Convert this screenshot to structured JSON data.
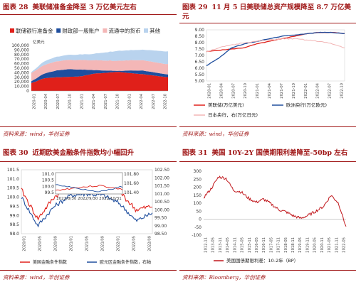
{
  "panels": [
    {
      "caption_num": "图表 28",
      "caption_text": "美联储准备金降至 3 万亿美元左右",
      "source": "资料来源：wind，华创证券"
    },
    {
      "caption_num": "图表 29",
      "caption_text": "11 月 5 日美联储总资产规模降至 8.7 万亿美元",
      "source": "资料来源：wind，华创证券"
    },
    {
      "caption_num": "图表 30",
      "caption_text": "近期欧美金融条件指数均小幅回升",
      "source": "资料来源：wind，华创证券"
    },
    {
      "caption_num": "图表 31",
      "caption_text": "美国 10Y-2Y 国债期限利差降至-50bp 左右",
      "source": "资料来源：Bloomberg，华创证券"
    }
  ],
  "colors": {
    "caption": "#a01818",
    "red": "#e0201a",
    "blue": "#1f4e9e",
    "pink": "#f4b7b7",
    "lightblue": "#b9d3ee",
    "darkred": "#c0161b"
  },
  "chart_data": [
    {
      "type": "area",
      "stacked": true,
      "ylabel": "亿美元",
      "ylim": [
        0,
        100000
      ],
      "yticks": [
        "100,000",
        "90,000",
        "80,000",
        "70,000",
        "60,000",
        "50,000",
        "40,000",
        "30,000",
        "20,000",
        "10,000",
        "0"
      ],
      "x": [
        "2020-01",
        "2020-04",
        "2020-07",
        "2020-10",
        "2021-01",
        "2021-04",
        "2021-07",
        "2021-10",
        "2022-01",
        "2022-04",
        "2022-07",
        "2022-10"
      ],
      "series": [
        {
          "name": "联储银行准备金",
          "color": "#e0201a",
          "values": [
            17000,
            28000,
            30000,
            31000,
            32000,
            38000,
            40000,
            42000,
            39000,
            37000,
            33000,
            30000
          ]
        },
        {
          "name": "财政部一般账户",
          "color": "#1f4e9e",
          "values": [
            4000,
            10000,
            15000,
            17000,
            15000,
            8000,
            5000,
            2000,
            6000,
            8000,
            7000,
            6000
          ]
        },
        {
          "name": "流通中的货币",
          "color": "#f4b7b7",
          "values": [
            18000,
            19000,
            20000,
            20500,
            21000,
            21500,
            22000,
            22000,
            22500,
            22500,
            22500,
            22500
          ]
        },
        {
          "name": "其他",
          "color": "#b9d3ee",
          "values": [
            2000,
            8000,
            10000,
            11000,
            12000,
            14000,
            18000,
            22000,
            22000,
            23000,
            26000,
            28000
          ]
        }
      ]
    },
    {
      "type": "line",
      "ylim": [
        5.0,
        9.0
      ],
      "yticks": [
        "9.00",
        "8.50",
        "8.00",
        "7.50",
        "7.00",
        "6.50",
        "6.00",
        "5.50",
        "5.00"
      ],
      "x": [
        "2020-01",
        "2020-04",
        "2020-07",
        "2020-10",
        "2021-01",
        "2021-04",
        "2021-07",
        "2021-10",
        "2022-01",
        "2022-04",
        "2022-07",
        "2022-10"
      ],
      "series": [
        {
          "name": "美联储(万亿美元)",
          "color": "#e0201a",
          "values": [
            7.3,
            7.4,
            7.5,
            7.6,
            7.9,
            8.1,
            8.3,
            8.5,
            8.7,
            8.8,
            8.8,
            8.7
          ]
        },
        {
          "name": "欧洲央行(万亿欧元)",
          "color": "#1f4e9e",
          "values": [
            6.2,
            6.8,
            7.6,
            7.9,
            8.1,
            8.3,
            8.5,
            8.6,
            8.7,
            8.8,
            8.8,
            8.7
          ]
        },
        {
          "name": "日本央行，右(万亿日元)",
          "color": "#f2b5b5",
          "values": [
            7.3,
            7.6,
            7.8,
            8.0,
            8.1,
            8.2,
            8.3,
            8.3,
            8.2,
            8.1,
            7.9,
            7.6
          ]
        }
      ]
    },
    {
      "type": "line",
      "ylim_left": [
        98.0,
        101.5
      ],
      "ylim_right": [
        98.5,
        102.5
      ],
      "yticks_left": [
        "101.5",
        "101.0",
        "100.5",
        "100.0",
        "99.5",
        "99.0",
        "98.5",
        "98.0"
      ],
      "yticks_right": [
        "102.50",
        "102.00",
        "101.50",
        "101.00",
        "100.50",
        "100.00",
        "99.50",
        "99.00",
        "98.50"
      ],
      "x": [
        "2020/01",
        "2020/05",
        "2020/09",
        "2021/01",
        "2021/05",
        "2021/09",
        "2022/01",
        "2022/05",
        "2022/09"
      ],
      "series": [
        {
          "name": "美国金融条件指数",
          "color": "#e0201a",
          "values": [
            100.4,
            98.8,
            100.0,
            100.6,
            100.8,
            100.7,
            100.3,
            99.3,
            99.5
          ]
        },
        {
          "name": "欧元区金融条件指数，右轴",
          "color": "#1f4e9e",
          "values": [
            100.8,
            99.0,
            100.2,
            100.9,
            101.0,
            100.9,
            100.4,
            99.3,
            99.8
          ]
        }
      ],
      "inset": {
        "x": [
          "2022/8/30",
          "2022/9/30",
          "2022/10/31"
        ],
        "yticks_left": [
          "101.0",
          "100.5",
          "100.0",
          "99.5"
        ],
        "yticks_right": [
          "101.80",
          "101.60",
          "101.40"
        ]
      }
    },
    {
      "type": "line",
      "ylim": [
        -100,
        300
      ],
      "yticks": [
        "300",
        "250",
        "200",
        "150",
        "100",
        "50",
        "0",
        "-50",
        "-100"
      ],
      "x": [
        "2012-11",
        "2013-05",
        "2013-11",
        "2014-05",
        "2014-11",
        "2015-05",
        "2015-11",
        "2016-05",
        "2016-11",
        "2017-05",
        "2017-11",
        "2018-05",
        "2018-11",
        "2019-05",
        "2019-11",
        "2020-05",
        "2020-11",
        "2021-05",
        "2021-11",
        "2022-05"
      ],
      "series": [
        {
          "name": "美国国债期限利差：10-2年（BP）",
          "color": "#c0161b",
          "values": [
            135,
            190,
            265,
            255,
            180,
            170,
            130,
            105,
            125,
            95,
            60,
            45,
            20,
            5,
            25,
            50,
            80,
            150,
            100,
            -50
          ]
        }
      ]
    }
  ]
}
